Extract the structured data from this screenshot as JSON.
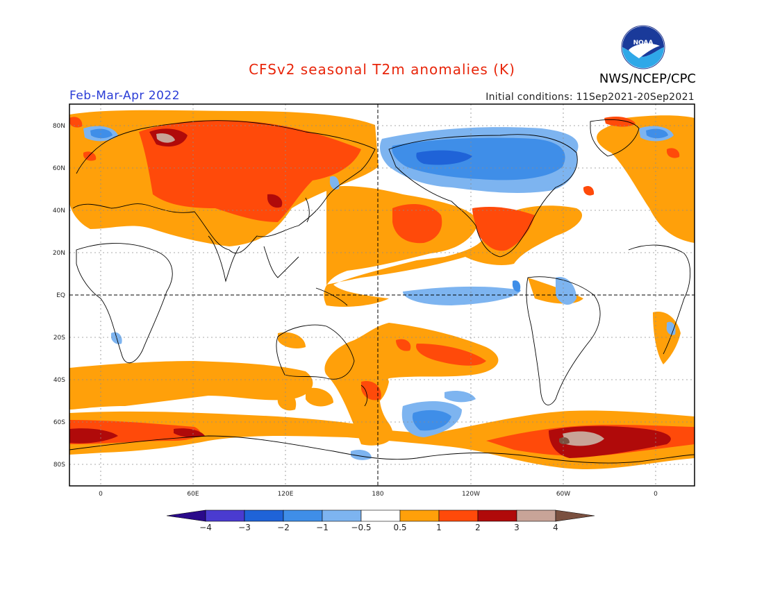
{
  "header": {
    "title": "CFSv2 seasonal T2m anomalies (K)",
    "season": "Feb-Mar-Apr 2022",
    "initial_conditions": "Initial conditions: 11Sep2021-20Sep2021",
    "agency": "NWS/NCEP/CPC",
    "logo_text": "NOAA",
    "title_color": "#e8250a",
    "season_color": "#2a3cd6"
  },
  "map": {
    "latitude_ticks": [
      "80N",
      "60N",
      "40N",
      "20N",
      "EQ",
      "20S",
      "40S",
      "60S",
      "80S"
    ],
    "longitude_ticks": [
      "0",
      "60E",
      "120E",
      "180",
      "120W",
      "60W",
      "0"
    ]
  },
  "colorbar": {
    "labels": [
      "-4",
      "-3",
      "-2",
      "-1",
      "-0.5",
      "0.5",
      "1",
      "2",
      "3",
      "4"
    ],
    "colors": [
      "#2a0a8a",
      "#4a3bd0",
      "#1f63d8",
      "#3f8ee8",
      "#7db4f0",
      "#ffffff",
      "#ffa00a",
      "#ff4a0a",
      "#b00a0a",
      "#c8a498",
      "#7a5040"
    ]
  },
  "chart_data": {
    "type": "heatmap",
    "title": "CFSv2 seasonal T2m anomalies (K)",
    "units": "K",
    "period": "Feb-Mar-Apr 2022",
    "levels": [
      -4,
      -3,
      -2,
      -1,
      -0.5,
      0.5,
      1,
      2,
      3,
      4
    ],
    "lat_range": [
      -90,
      90
    ],
    "lon_range": [
      -20,
      380
    ]
  }
}
